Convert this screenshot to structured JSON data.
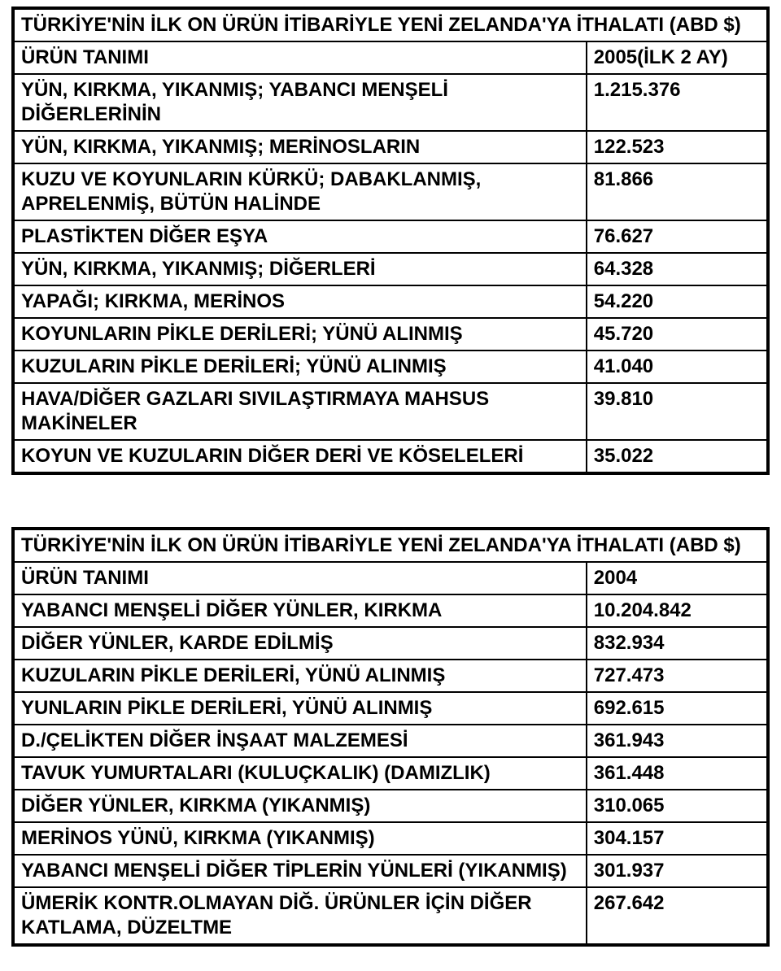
{
  "colors": {
    "text": "#000000",
    "background": "#ffffff",
    "border": "#000000"
  },
  "typography": {
    "font_family": "Arial",
    "font_size_pt": 18,
    "font_weight": 700
  },
  "table1": {
    "title": "TÜRKİYE'NİN İLK ON ÜRÜN İTİBARİYLE YENİ ZELANDA'YA  İTHALATI (ABD $)",
    "header": {
      "col1": "ÜRÜN TANIMI",
      "col2": "2005(İLK 2 AY)"
    },
    "rows": [
      {
        "desc": "YÜN, KIRKMA, YIKANMIŞ; YABANCI MENŞELİ DİĞERLERİNİN",
        "val": "1.215.376"
      },
      {
        "desc": "YÜN, KIRKMA, YIKANMIŞ; MERİNOSLARIN",
        "val": "122.523"
      },
      {
        "desc": "KUZU VE KOYUNLARIN KÜRKÜ; DABAKLANMIŞ, APRELENMİŞ, BÜTÜN HALİNDE",
        "val": "81.866"
      },
      {
        "desc": "PLASTİKTEN DİĞER EŞYA",
        "val": "76.627"
      },
      {
        "desc": "YÜN, KIRKMA, YIKANMIŞ; DİĞERLERİ",
        "val": "64.328"
      },
      {
        "desc": "YAPAĞI; KIRKMA, MERİNOS",
        "val": "54.220"
      },
      {
        "desc": "KOYUNLARIN PİKLE DERİLERİ; YÜNÜ ALINMIŞ",
        "val": "45.720"
      },
      {
        "desc": "KUZULARIN PİKLE DERİLERİ; YÜNÜ ALINMIŞ",
        "val": "41.040"
      },
      {
        "desc": "HAVA/DİĞER GAZLARI SIVILAŞTIRMAYA MAHSUS MAKİNELER",
        "val": "39.810"
      },
      {
        "desc": "KOYUN VE KUZULARIN DİĞER DERİ VE KÖSELELERİ",
        "val": "35.022"
      }
    ]
  },
  "table2": {
    "title": "TÜRKİYE'NİN İLK ON ÜRÜN İTİBARİYLE YENİ ZELANDA'YA  İTHALATI (ABD $)",
    "header": {
      "col1": "ÜRÜN TANIMI",
      "col2": "2004"
    },
    "rows": [
      {
        "desc": "YABANCI MENŞELİ DİĞER YÜNLER, KIRKMA",
        "val": "10.204.842"
      },
      {
        "desc": "DİĞER YÜNLER, KARDE EDİLMİŞ",
        "val": "832.934"
      },
      {
        "desc": "KUZULARIN PİKLE DERİLERİ, YÜNÜ ALINMIŞ",
        "val": "727.473"
      },
      {
        "desc": "YUNLARIN PİKLE DERİLERİ, YÜNÜ ALINMIŞ",
        "val": "692.615"
      },
      {
        "desc": "D./ÇELİKTEN DİĞER İNŞAAT MALZEMESİ",
        "val": "361.943"
      },
      {
        "desc": "TAVUK YUMURTALARI (KULUÇKALIK) (DAMIZLIK)",
        "val": "361.448"
      },
      {
        "desc": "DİĞER YÜNLER, KIRKMA (YIKANMIŞ)",
        "val": "310.065"
      },
      {
        "desc": "MERİNOS YÜNÜ, KIRKMA (YIKANMIŞ)",
        "val": "304.157"
      },
      {
        "desc": "YABANCI MENŞELİ DİĞER TİPLERİN YÜNLERİ (YIKANMIŞ)",
        "val": "301.937"
      },
      {
        "desc": "ÜMERİK KONTR.OLMAYAN DİĞ. ÜRÜNLER İÇİN DİĞER KATLAMA, DÜZELTME",
        "val": "267.642"
      }
    ]
  }
}
